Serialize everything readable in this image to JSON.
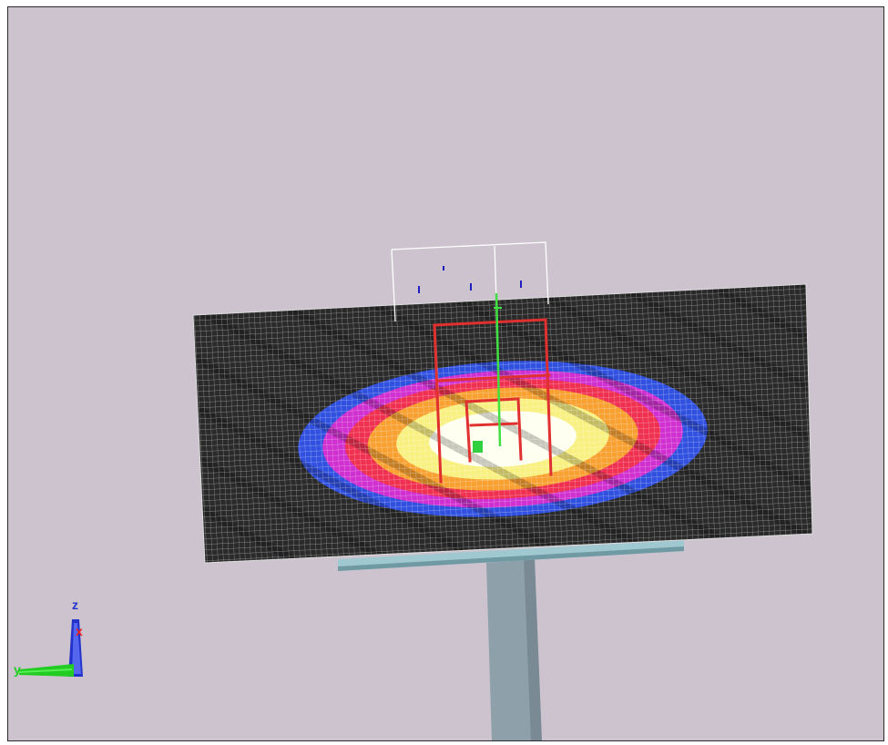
{
  "viewport": {
    "background": "#ccc3ce"
  },
  "triad": {
    "z_label": "z",
    "x_label": "x",
    "y_label": "y",
    "z_color": "#2233cc",
    "x_color": "#ee2222",
    "y_color": "#22cc22"
  },
  "heatmap": {
    "colors": [
      "#2a2a2a",
      "#3050e0",
      "#d030d0",
      "#f03050",
      "#f8a030",
      "#f8f080",
      "#fffff0"
    ]
  },
  "colors": {
    "frame": "#e03030",
    "outline": "#ffffff",
    "tripod_axis": "#40e040",
    "sensor": "#2020c0",
    "support_beam": "#9fc8d0",
    "pole": "#8ea0aa"
  }
}
